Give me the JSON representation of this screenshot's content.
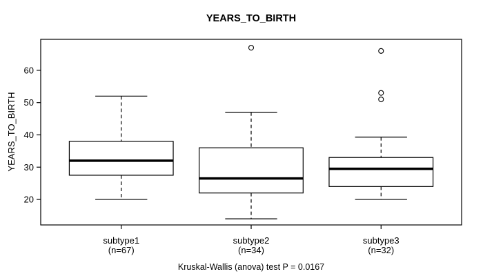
{
  "title": "YEARS_TO_BIRTH",
  "y_axis": {
    "label": "YEARS_TO_BIRTH",
    "tick_labels": [
      "20",
      "30",
      "40",
      "50",
      "60"
    ]
  },
  "x_axis": {
    "category_labels": [
      "subtype1",
      "subtype2",
      "subtype3"
    ],
    "count_labels": [
      "(n=67)",
      "(n=34)",
      "(n=32)"
    ]
  },
  "caption": "Kruskal-Wallis (anova) test P = 0.0167",
  "chart_data": {
    "type": "boxplot",
    "title": "YEARS_TO_BIRTH",
    "ylabel": "YEARS_TO_BIRTH",
    "xlabel": "",
    "ylim": [
      12.1,
      69.6
    ],
    "xlim": [
      0.38,
      3.62
    ],
    "yticks": [
      20,
      30,
      40,
      50,
      60
    ],
    "grid": false,
    "categories": [
      "subtype1",
      "subtype2",
      "subtype3"
    ],
    "category_sublabels": [
      "(n=67)",
      "(n=34)",
      "(n=32)"
    ],
    "series": [
      {
        "name": "subtype1",
        "n": 67,
        "whisker_low": 20,
        "q1": 27.5,
        "median": 32,
        "q3": 38,
        "whisker_high": 52,
        "outliers": []
      },
      {
        "name": "subtype2",
        "n": 34,
        "whisker_low": 14,
        "q1": 22,
        "median": 26.5,
        "q3": 36,
        "whisker_high": 47,
        "outliers": [
          67
        ]
      },
      {
        "name": "subtype3",
        "n": 32,
        "whisker_low": 20,
        "q1": 24,
        "median": 29.5,
        "q3": 33,
        "whisker_high": 39.3,
        "outliers": [
          51,
          53,
          66
        ]
      }
    ],
    "annotation": "Kruskal-Wallis (anova) test P = 0.0167",
    "colors": {
      "line": "#000000",
      "box_fill": "#ffffff",
      "background": "#ffffff"
    }
  }
}
